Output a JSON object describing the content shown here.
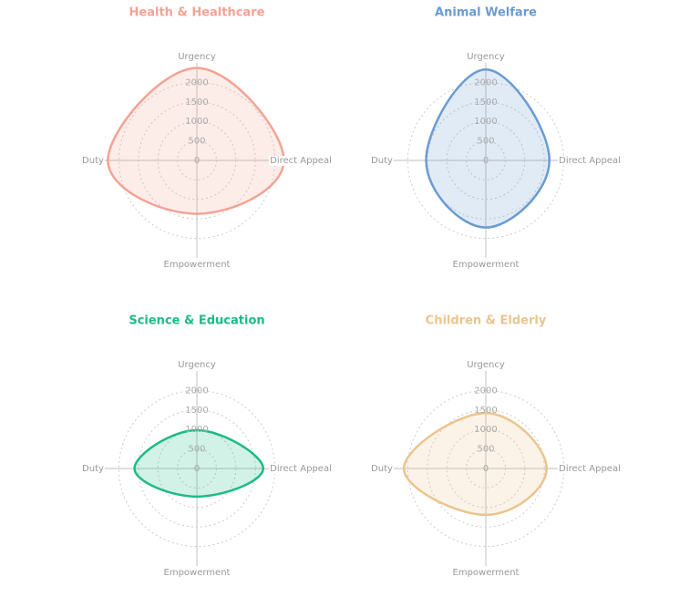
{
  "chart_data": [
    {
      "type": "radar",
      "title": "Health & Healthcare",
      "color": "#f4a393",
      "categories": [
        "Urgency",
        "Direct Appeal",
        "Empowerment",
        "Duty"
      ],
      "values": [
        2370,
        2230,
        1370,
        2280
      ],
      "ylim": [
        0,
        2500
      ],
      "yticks": [
        0,
        500,
        1000,
        1500,
        2000
      ]
    },
    {
      "type": "radar",
      "title": "Animal Welfare",
      "color": "#6a9bd3",
      "categories": [
        "Urgency",
        "Direct Appeal",
        "Empowerment",
        "Duty"
      ],
      "values": [
        2330,
        1630,
        1720,
        1530
      ],
      "ylim": [
        0,
        2500
      ],
      "yticks": [
        0,
        500,
        1000,
        1500,
        2000
      ]
    },
    {
      "type": "radar",
      "title": "Science & Education",
      "color": "#1dbb85",
      "categories": [
        "Urgency",
        "Direct Appeal",
        "Empowerment",
        "Duty"
      ],
      "values": [
        980,
        1700,
        720,
        1600
      ],
      "ylim": [
        0,
        2500
      ],
      "yticks": [
        0,
        500,
        1000,
        1500,
        2000
      ]
    },
    {
      "type": "radar",
      "title": "Children & Elderly",
      "color": "#ecc48e",
      "categories": [
        "Urgency",
        "Direct Appeal",
        "Empowerment",
        "Duty"
      ],
      "values": [
        1420,
        1560,
        1190,
        2100
      ],
      "ylim": [
        0,
        2500
      ],
      "yticks": [
        0,
        500,
        1000,
        1500,
        2000
      ]
    }
  ]
}
